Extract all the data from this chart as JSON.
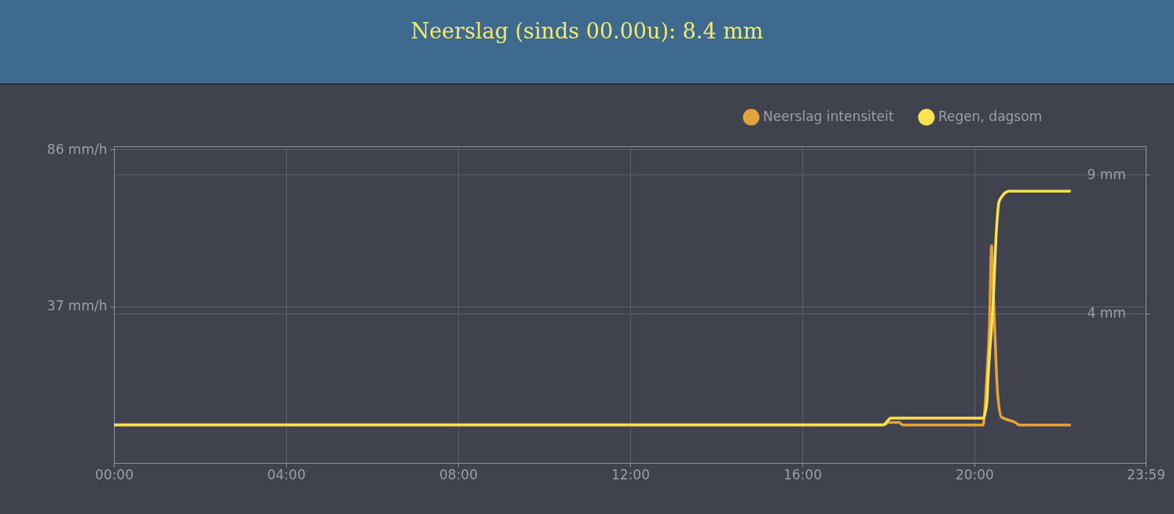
{
  "chart_data": {
    "type": "line",
    "title": "Neerslag (sinds 00.00u): 8.4 mm",
    "xlim": [
      0,
      23.983
    ],
    "xticks": [
      {
        "value": 0,
        "label": "00:00"
      },
      {
        "value": 4,
        "label": "04:00"
      },
      {
        "value": 8,
        "label": "08:00"
      },
      {
        "value": 12,
        "label": "12:00"
      },
      {
        "value": 16,
        "label": "16:00"
      },
      {
        "value": 20,
        "label": "20:00"
      },
      {
        "value": 23.983,
        "label": "23:59"
      }
    ],
    "ylim": [
      -11.8,
      87
    ],
    "yticks": [
      {
        "value": 37,
        "label": "37 mm/h"
      },
      {
        "value": 86,
        "label": "86 mm/h"
      }
    ],
    "y2lim": [
      -1.37,
      10.02
    ],
    "y2ticks": [
      {
        "value": 4,
        "label": "4 mm"
      },
      {
        "value": 9,
        "label": "9 mm"
      }
    ],
    "grid": true,
    "legend": "top right",
    "series": [
      {
        "name": "Neerslag intensiteit",
        "color": "#e3a23c",
        "x": [
          0,
          17.88,
          18.01,
          18.25,
          18.34,
          20.2,
          20.29,
          20.35,
          20.4,
          20.43,
          20.47,
          20.54,
          20.63,
          20.81,
          20.93,
          21.05,
          22.24
        ],
        "values": [
          0,
          0,
          0.8,
          0.8,
          0,
          0,
          15,
          31,
          56,
          45,
          31,
          10,
          2.5,
          1.5,
          1,
          0,
          0
        ]
      },
      {
        "name": "Regen, dagsom",
        "color": "#fde24f",
        "axis": "y2",
        "x": [
          0,
          17.88,
          18.06,
          20.2,
          20.29,
          20.32,
          20.44,
          20.51,
          20.57,
          20.66,
          20.81,
          22.24
        ],
        "values": [
          0,
          0,
          0.24,
          0.24,
          0.78,
          1.71,
          4.5,
          6.9,
          8.0,
          8.25,
          8.4,
          8.4
        ]
      }
    ]
  }
}
